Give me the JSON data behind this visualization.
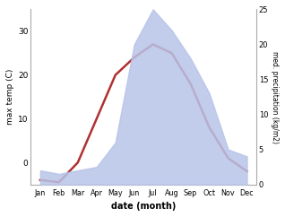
{
  "months": [
    "Jan",
    "Feb",
    "Mar",
    "Apr",
    "May",
    "Jun",
    "Jul",
    "Aug",
    "Sep",
    "Oct",
    "Nov",
    "Dec"
  ],
  "temperature": [
    -4,
    -4.5,
    0,
    10,
    20,
    24,
    27,
    25,
    18,
    8,
    1,
    -2
  ],
  "precipitation": [
    2,
    1.5,
    2,
    2.5,
    6,
    20,
    25,
    22,
    18,
    13,
    5,
    4
  ],
  "temp_color": "#b03030",
  "precip_fill_color": "#b8c4e8",
  "temp_ylim": [
    -5,
    35
  ],
  "precip_ylim": [
    0,
    25
  ],
  "temp_yticks": [
    0,
    10,
    20,
    30
  ],
  "precip_yticks": [
    0,
    5,
    10,
    15,
    20,
    25
  ],
  "ylabel_left": "max temp (C)",
  "ylabel_right": "med. precipitation (kg/m2)",
  "xlabel": "date (month)",
  "background_color": "#ffffff",
  "temp_linewidth": 1.8
}
